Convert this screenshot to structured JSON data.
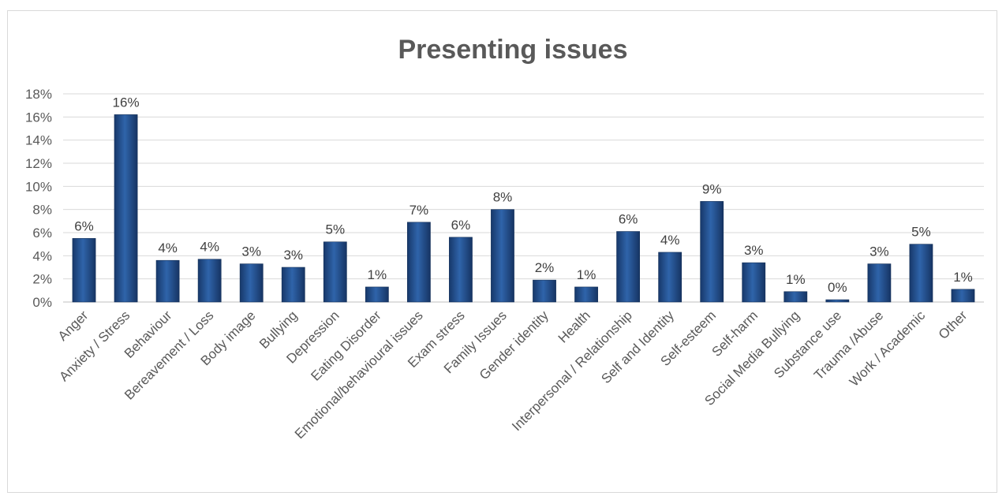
{
  "chart_data": {
    "type": "bar",
    "title": "Presenting issues",
    "xlabel": "",
    "ylabel": "",
    "ylim": [
      0,
      18
    ],
    "y_ticks": [
      "0%",
      "2%",
      "4%",
      "6%",
      "8%",
      "10%",
      "12%",
      "14%",
      "16%",
      "18%"
    ],
    "grid": true,
    "legend": "none",
    "bar_color": "#1f4e8c",
    "categories": [
      "Anger",
      "Anxiety / Stress",
      "Behaviour",
      "Bereavement / Loss",
      "Body image",
      "Bullying",
      "Depression",
      "Eating Disorder",
      "Emotional/behavioural issues",
      "Exam stress",
      "Family Issues",
      "Gender identity",
      "Health",
      "Interpersonal / Relationship",
      "Self and Identity",
      "Self-esteem",
      "Self-harm",
      "Social Media Bullying",
      "Substance use",
      "Trauma /Abuse",
      "Work / Academic",
      "Other"
    ],
    "values": [
      5.5,
      16.2,
      3.6,
      3.7,
      3.3,
      3.0,
      5.2,
      1.3,
      6.9,
      5.6,
      8.0,
      1.9,
      1.3,
      6.1,
      4.3,
      8.7,
      3.4,
      0.9,
      0.2,
      3.3,
      5.0,
      1.1
    ],
    "data_labels": [
      "6%",
      "16%",
      "4%",
      "4%",
      "3%",
      "3%",
      "5%",
      "1%",
      "7%",
      "6%",
      "8%",
      "2%",
      "1%",
      "6%",
      "4%",
      "9%",
      "3%",
      "1%",
      "0%",
      "3%",
      "5%",
      "1%"
    ]
  }
}
